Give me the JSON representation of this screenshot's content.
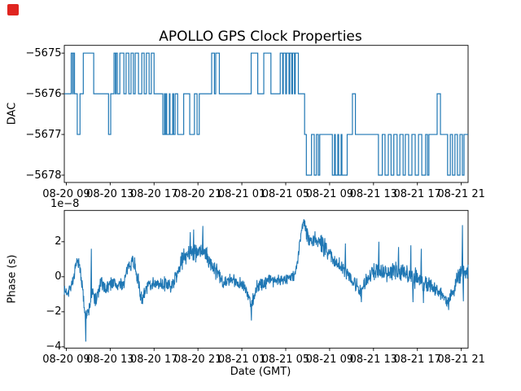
{
  "figure": {
    "title": "APOLLO GPS Clock Properties",
    "background": "#ffffff",
    "line_color": "#1f77b4",
    "axis_color": "#000000",
    "corner_marker_color": "#e02520"
  },
  "chart_data": [
    {
      "type": "step",
      "ylabel": "DAC",
      "ytick_labels": [
        "−5675",
        "−5676",
        "−5677",
        "−5678"
      ],
      "yticks": [
        -5675,
        -5676,
        -5677,
        -5678
      ],
      "ylim": [
        -5678.18,
        -5674.81
      ],
      "xtick_labels": [
        "08-20 09",
        "08-20 13",
        "08-20 17",
        "08-20 21",
        "08-21 01",
        "08-21 05",
        "08-21 09",
        "08-21 13",
        "08-21 17",
        "08-21 21"
      ],
      "xticks_hours": [
        9,
        13,
        17,
        21,
        25,
        29,
        33,
        37,
        41,
        45
      ],
      "xlim_hours": [
        8.82,
        45.62
      ],
      "points": [
        [
          8.82,
          -5676
        ],
        [
          9.45,
          -5675
        ],
        [
          9.58,
          -5676
        ],
        [
          9.63,
          -5675
        ],
        [
          9.75,
          -5676
        ],
        [
          10.0,
          -5677
        ],
        [
          10.25,
          -5676
        ],
        [
          10.55,
          -5675
        ],
        [
          11.5,
          -5676
        ],
        [
          12.85,
          -5677
        ],
        [
          13.05,
          -5676
        ],
        [
          13.35,
          -5675
        ],
        [
          13.48,
          -5676
        ],
        [
          13.53,
          -5675
        ],
        [
          13.65,
          -5676
        ],
        [
          13.88,
          -5675
        ],
        [
          14.25,
          -5676
        ],
        [
          14.45,
          -5675
        ],
        [
          14.7,
          -5676
        ],
        [
          14.9,
          -5675
        ],
        [
          15.12,
          -5676
        ],
        [
          15.28,
          -5675
        ],
        [
          15.58,
          -5676
        ],
        [
          15.88,
          -5675
        ],
        [
          16.1,
          -5676
        ],
        [
          16.3,
          -5675
        ],
        [
          16.55,
          -5676
        ],
        [
          16.75,
          -5675
        ],
        [
          17.0,
          -5676
        ],
        [
          17.8,
          -5677
        ],
        [
          17.95,
          -5676
        ],
        [
          18.0,
          -5677
        ],
        [
          18.1,
          -5676
        ],
        [
          18.15,
          -5677
        ],
        [
          18.4,
          -5676
        ],
        [
          18.45,
          -5677
        ],
        [
          18.7,
          -5676
        ],
        [
          18.78,
          -5677
        ],
        [
          18.92,
          -5676
        ],
        [
          19.15,
          -5677
        ],
        [
          19.7,
          -5676
        ],
        [
          20.25,
          -5677
        ],
        [
          20.68,
          -5676
        ],
        [
          20.92,
          -5677
        ],
        [
          21.12,
          -5676
        ],
        [
          22.25,
          -5675
        ],
        [
          22.5,
          -5676
        ],
        [
          22.62,
          -5675
        ],
        [
          22.95,
          -5676
        ],
        [
          25.85,
          -5675
        ],
        [
          26.45,
          -5676
        ],
        [
          27.0,
          -5675
        ],
        [
          27.65,
          -5676
        ],
        [
          28.5,
          -5675
        ],
        [
          28.72,
          -5676
        ],
        [
          28.78,
          -5675
        ],
        [
          29.0,
          -5676
        ],
        [
          29.07,
          -5675
        ],
        [
          29.3,
          -5676
        ],
        [
          29.37,
          -5675
        ],
        [
          29.55,
          -5676
        ],
        [
          29.62,
          -5675
        ],
        [
          29.8,
          -5676
        ],
        [
          29.87,
          -5675
        ],
        [
          30.15,
          -5676
        ],
        [
          30.72,
          -5677
        ],
        [
          30.88,
          -5678
        ],
        [
          31.35,
          -5677
        ],
        [
          31.6,
          -5678
        ],
        [
          31.8,
          -5677
        ],
        [
          31.97,
          -5678
        ],
        [
          32.1,
          -5677
        ],
        [
          33.25,
          -5678
        ],
        [
          33.45,
          -5677
        ],
        [
          33.52,
          -5678
        ],
        [
          33.75,
          -5677
        ],
        [
          33.82,
          -5678
        ],
        [
          34.05,
          -5677
        ],
        [
          34.12,
          -5678
        ],
        [
          34.6,
          -5677
        ],
        [
          35.08,
          -5676
        ],
        [
          35.35,
          -5677
        ],
        [
          37.45,
          -5678
        ],
        [
          37.8,
          -5677
        ],
        [
          38.05,
          -5678
        ],
        [
          38.35,
          -5677
        ],
        [
          38.6,
          -5678
        ],
        [
          38.85,
          -5677
        ],
        [
          39.15,
          -5678
        ],
        [
          39.4,
          -5677
        ],
        [
          39.7,
          -5678
        ],
        [
          39.9,
          -5677
        ],
        [
          40.2,
          -5678
        ],
        [
          40.5,
          -5677
        ],
        [
          40.8,
          -5678
        ],
        [
          41.1,
          -5677
        ],
        [
          41.4,
          -5678
        ],
        [
          41.75,
          -5677
        ],
        [
          41.92,
          -5678
        ],
        [
          42.05,
          -5677
        ],
        [
          42.8,
          -5676
        ],
        [
          43.1,
          -5677
        ],
        [
          43.75,
          -5678
        ],
        [
          44.0,
          -5677
        ],
        [
          44.2,
          -5678
        ],
        [
          44.42,
          -5677
        ],
        [
          44.65,
          -5678
        ],
        [
          44.88,
          -5677
        ],
        [
          45.1,
          -5678
        ],
        [
          45.25,
          -5677
        ]
      ]
    },
    {
      "type": "line",
      "ylabel": "Phase (s)",
      "xlabel": "Date (GMT)",
      "offset_text": "1e−8",
      "unit_scale": "1e-8",
      "ytick_labels": [
        "2",
        "0",
        "−2",
        "−4"
      ],
      "yticks": [
        2,
        0,
        -2,
        -4
      ],
      "ylim": [
        -4.07,
        3.79
      ],
      "xtick_labels": [
        "08-20 09",
        "08-20 13",
        "08-20 17",
        "08-20 21",
        "08-21 01",
        "08-21 05",
        "08-21 09",
        "08-21 13",
        "08-21 17",
        "08-21 21"
      ],
      "xticks_hours": [
        9,
        13,
        17,
        21,
        25,
        29,
        33,
        37,
        41,
        45
      ],
      "xlim_hours": [
        8.82,
        45.62
      ],
      "mean_curve": [
        [
          8.82,
          -0.85
        ],
        [
          9.2,
          -0.8
        ],
        [
          9.65,
          -0.15
        ],
        [
          10.0,
          0.9
        ],
        [
          10.3,
          0.35
        ],
        [
          10.67,
          -1.9
        ],
        [
          10.85,
          -2.2
        ],
        [
          11.05,
          -2.0
        ],
        [
          11.34,
          -0.9
        ],
        [
          11.7,
          -1.35
        ],
        [
          12.15,
          -0.4
        ],
        [
          12.6,
          -0.65
        ],
        [
          13.1,
          -0.3
        ],
        [
          13.7,
          -0.5
        ],
        [
          14.25,
          -0.35
        ],
        [
          14.75,
          0.75
        ],
        [
          15.05,
          1.0
        ],
        [
          15.4,
          0.3
        ],
        [
          15.7,
          -0.9
        ],
        [
          16.0,
          -1.3
        ],
        [
          16.4,
          -0.5
        ],
        [
          16.9,
          -0.3
        ],
        [
          17.5,
          -0.5
        ],
        [
          18.1,
          -0.4
        ],
        [
          18.55,
          -0.6
        ],
        [
          19.0,
          0.0
        ],
        [
          19.45,
          0.8
        ],
        [
          19.9,
          1.3
        ],
        [
          20.4,
          1.5
        ],
        [
          20.9,
          1.3
        ],
        [
          21.5,
          1.5
        ],
        [
          22.0,
          0.9
        ],
        [
          22.45,
          0.5
        ],
        [
          23.0,
          0.0
        ],
        [
          23.5,
          -0.3
        ],
        [
          24.0,
          -0.2
        ],
        [
          24.6,
          -0.3
        ],
        [
          25.2,
          -0.5
        ],
        [
          25.9,
          -1.6
        ],
        [
          26.35,
          -0.6
        ],
        [
          26.85,
          -0.4
        ],
        [
          27.45,
          -0.1
        ],
        [
          28.2,
          -0.2
        ],
        [
          28.9,
          -0.1
        ],
        [
          29.65,
          0.0
        ],
        [
          30.0,
          0.5
        ],
        [
          30.35,
          2.2
        ],
        [
          30.63,
          3.3
        ],
        [
          30.95,
          2.4
        ],
        [
          31.3,
          2.1
        ],
        [
          31.75,
          2.2
        ],
        [
          32.2,
          1.9
        ],
        [
          32.65,
          1.6
        ],
        [
          33.1,
          1.2
        ],
        [
          33.5,
          0.9
        ],
        [
          34.0,
          0.6
        ],
        [
          34.5,
          0.4
        ],
        [
          35.0,
          -0.1
        ],
        [
          35.45,
          -0.5
        ],
        [
          35.9,
          -0.8
        ],
        [
          36.35,
          -0.2
        ],
        [
          36.95,
          0.2
        ],
        [
          37.55,
          0.4
        ],
        [
          38.1,
          0.2
        ],
        [
          38.7,
          0.3
        ],
        [
          39.3,
          0.3
        ],
        [
          39.9,
          0.2
        ],
        [
          40.45,
          0.1
        ],
        [
          40.95,
          -0.1
        ],
        [
          41.4,
          -0.2
        ],
        [
          41.9,
          -0.4
        ],
        [
          42.45,
          -0.6
        ],
        [
          42.9,
          -0.8
        ],
        [
          43.4,
          -1.1
        ],
        [
          43.8,
          -1.4
        ],
        [
          44.35,
          -0.6
        ],
        [
          44.8,
          0.1
        ],
        [
          45.15,
          0.3
        ],
        [
          45.62,
          0.3
        ]
      ],
      "spikes": [
        [
          10.78,
          -3.7
        ],
        [
          11.28,
          1.6
        ],
        [
          20.3,
          2.55
        ],
        [
          20.6,
          2.7
        ],
        [
          21.45,
          2.9
        ],
        [
          25.88,
          -2.5
        ],
        [
          34.45,
          1.9
        ],
        [
          35.9,
          -1.45
        ],
        [
          37.5,
          2.0
        ],
        [
          39.28,
          1.7
        ],
        [
          40.4,
          1.8
        ],
        [
          40.6,
          -1.45
        ],
        [
          41.35,
          1.6
        ],
        [
          41.55,
          -1.5
        ],
        [
          43.85,
          -1.9
        ],
        [
          45.1,
          2.95
        ],
        [
          45.2,
          -1.4
        ]
      ],
      "noise": {
        "seed": 7,
        "dt_hours": 0.028,
        "amplitude_anchors": [
          [
            8.82,
            0.35
          ],
          [
            10.5,
            0.45
          ],
          [
            12.0,
            0.45
          ],
          [
            14.0,
            0.4
          ],
          [
            15.5,
            0.5
          ],
          [
            17.0,
            0.4
          ],
          [
            19.0,
            0.45
          ],
          [
            20.5,
            0.6
          ],
          [
            22.0,
            0.5
          ],
          [
            24.0,
            0.4
          ],
          [
            26.0,
            0.45
          ],
          [
            28.0,
            0.4
          ],
          [
            29.8,
            0.35
          ],
          [
            31.0,
            0.5
          ],
          [
            32.5,
            0.55
          ],
          [
            34.0,
            0.45
          ],
          [
            36.0,
            0.45
          ],
          [
            37.5,
            0.55
          ],
          [
            39.0,
            0.5
          ],
          [
            40.5,
            0.6
          ],
          [
            42.0,
            0.5
          ],
          [
            43.5,
            0.45
          ],
          [
            44.5,
            0.55
          ],
          [
            45.62,
            0.5
          ]
        ]
      }
    }
  ]
}
